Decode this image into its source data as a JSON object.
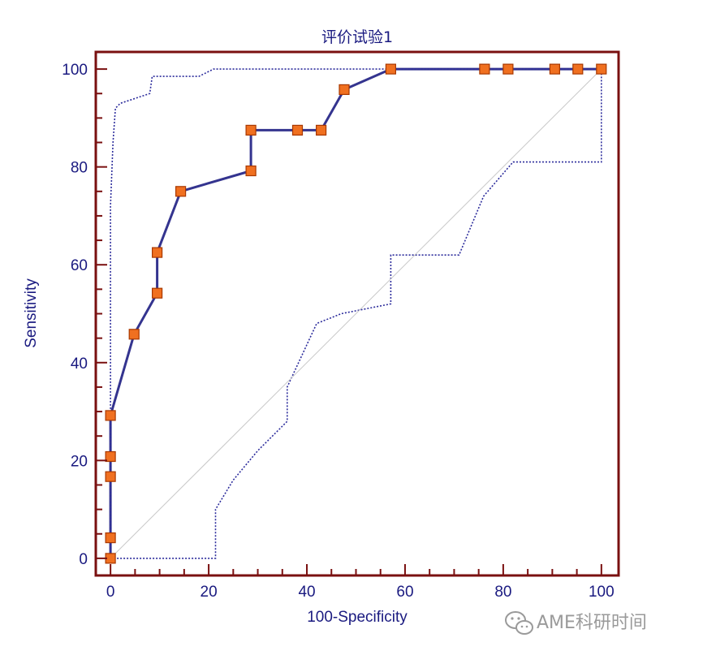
{
  "chart_data": {
    "type": "line",
    "title": "评价试验1",
    "xlabel": "100-Specificity",
    "ylabel": "Sensitivity",
    "xlim": [
      -3,
      103.5
    ],
    "ylim": [
      -3.5,
      103.5
    ],
    "xticks": [
      0,
      20,
      40,
      60,
      80,
      100
    ],
    "yticks": [
      0,
      20,
      40,
      60,
      80,
      100
    ],
    "minor_tick_step": 5,
    "grid": false,
    "series": [
      {
        "role": "roc",
        "points": [
          [
            0,
            0
          ],
          [
            0,
            4.2
          ],
          [
            0,
            16.7
          ],
          [
            0,
            20.8
          ],
          [
            0,
            29.2
          ],
          [
            4.8,
            45.8
          ],
          [
            9.5,
            54.2
          ],
          [
            9.5,
            62.5
          ],
          [
            14.3,
            75
          ],
          [
            28.6,
            79.2
          ],
          [
            28.6,
            87.5
          ],
          [
            38.1,
            87.5
          ],
          [
            42.9,
            87.5
          ],
          [
            47.6,
            95.8
          ],
          [
            57.1,
            100
          ],
          [
            76.2,
            100
          ],
          [
            81,
            100
          ],
          [
            90.5,
            100
          ],
          [
            95.2,
            100
          ],
          [
            100,
            100
          ]
        ],
        "markers": true,
        "color": "#34348f",
        "marker_color": "#f07020"
      },
      {
        "role": "upper-ci",
        "points": [
          [
            0,
            0
          ],
          [
            0,
            72
          ],
          [
            0.5,
            85
          ],
          [
            1,
            92
          ],
          [
            2,
            93
          ],
          [
            5,
            94
          ],
          [
            8,
            95
          ],
          [
            8.5,
            98.5
          ],
          [
            12,
            98.5
          ],
          [
            18,
            98.5
          ],
          [
            21,
            100
          ],
          [
            57.1,
            100
          ],
          [
            100,
            100
          ]
        ],
        "dotted": true,
        "color": "#2c2c9c"
      },
      {
        "role": "lower-ci",
        "points": [
          [
            0,
            0
          ],
          [
            21.4,
            0
          ],
          [
            21.4,
            10
          ],
          [
            25,
            16
          ],
          [
            30,
            22
          ],
          [
            36,
            28
          ],
          [
            36,
            35
          ],
          [
            42,
            48
          ],
          [
            47,
            50
          ],
          [
            57.1,
            52
          ],
          [
            57.1,
            62
          ],
          [
            71,
            62
          ],
          [
            76,
            74
          ],
          [
            82,
            81
          ],
          [
            100,
            81
          ],
          [
            100,
            100
          ]
        ],
        "dotted": true,
        "color": "#2c2c9c"
      },
      {
        "role": "reference-diagonal",
        "points": [
          [
            0,
            0
          ],
          [
            100,
            100
          ]
        ],
        "color": "#c8c8c8"
      }
    ]
  },
  "watermark": {
    "icon": "wechat-icon",
    "text": "AME科研时间"
  },
  "colors": {
    "frame": "#7a1010",
    "text": "#1a1a80",
    "marker_fill": "#f07020"
  }
}
